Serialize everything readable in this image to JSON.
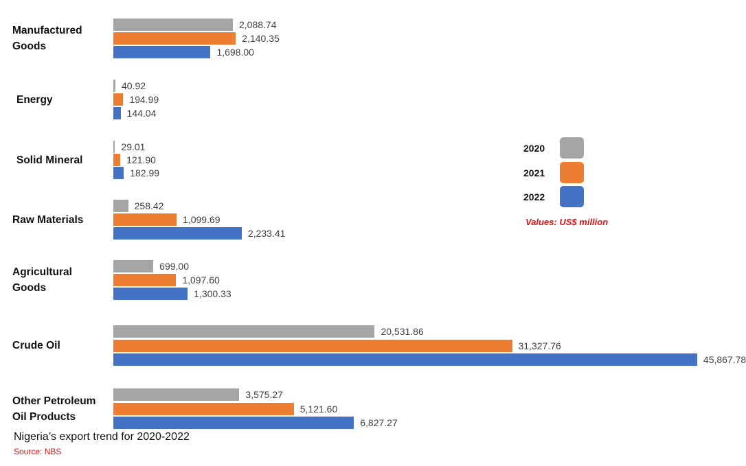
{
  "chart_data": {
    "type": "bar",
    "orientation": "horizontal",
    "caption": "Nigeria’s export trend for 2020-2022",
    "source": "Source: NBS",
    "unit_note": "Values: US$ million",
    "categories": [
      "Manufactured Goods",
      "Energy",
      "Solid Mineral",
      "Raw Materials",
      "Agricultural Goods",
      "Crude Oil",
      "Other Petroleum Oil Products"
    ],
    "category_lines": [
      [
        "Manufactured",
        "Goods"
      ],
      [
        "Energy"
      ],
      [
        "Solid Mineral"
      ],
      [
        "Raw Materials"
      ],
      [
        "Agricultural",
        "Goods"
      ],
      [
        "Crude Oil"
      ],
      [
        "Other Petroleum",
        "Oil Products"
      ]
    ],
    "series": [
      {
        "name": "2020",
        "color": "#A5A5A5",
        "values": [
          2088.74,
          40.92,
          29.01,
          258.42,
          699.0,
          20531.86,
          3575.27
        ],
        "labels": [
          "2,088.74",
          "40.92",
          "29.01",
          "258.42",
          "699.00",
          "20,531.86",
          "3,575.27"
        ]
      },
      {
        "name": "2021",
        "color": "#ED7D31",
        "values": [
          2140.35,
          194.99,
          121.9,
          1099.69,
          1097.6,
          31327.76,
          5121.6
        ],
        "labels": [
          "2,140.35",
          "194.99",
          "121.90",
          "1,099.69",
          "1,097.60",
          "31,327.76",
          "5,121.60"
        ]
      },
      {
        "name": "2022",
        "color": "#4472C4",
        "values": [
          1698.0,
          144.04,
          182.99,
          2233.41,
          1300.33,
          45867.78,
          6827.27
        ],
        "labels": [
          "1,698.00",
          "144.04",
          "182.99",
          "2,233.41",
          "1,300.33",
          "45,867.78",
          "6,827.27"
        ]
      }
    ],
    "legend_placement": "right",
    "grid": false
  }
}
